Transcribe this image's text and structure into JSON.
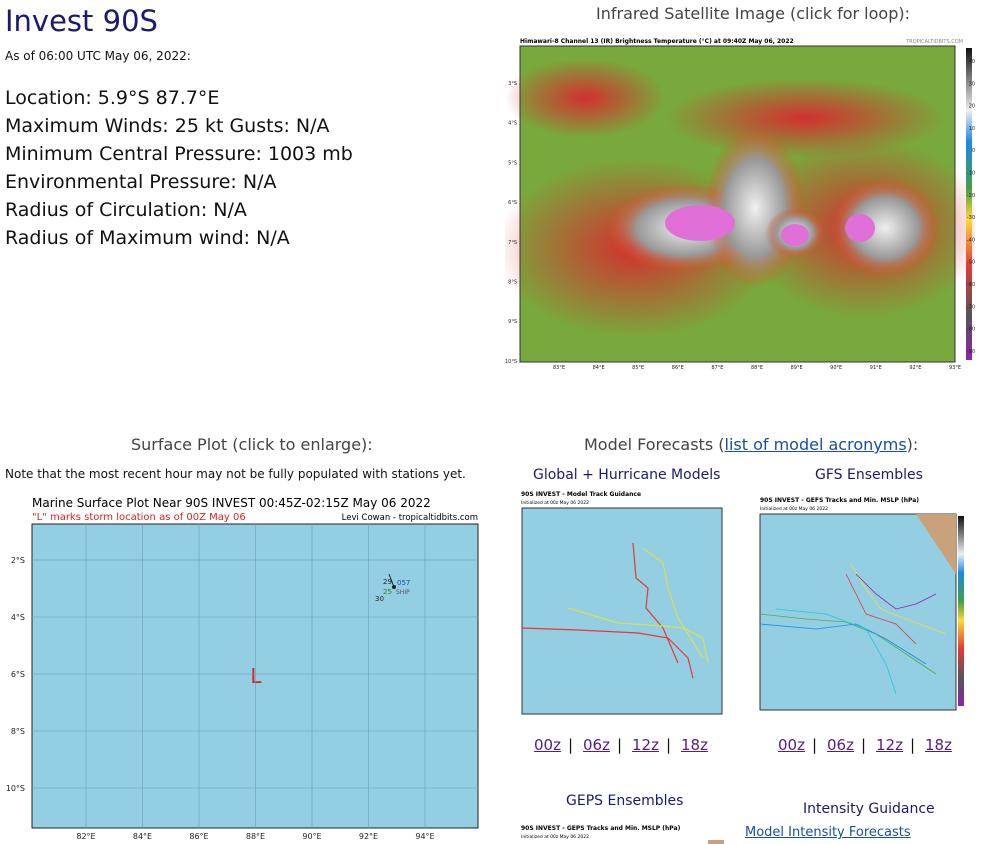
{
  "header": {
    "title": "Invest 90S",
    "as_of": "As of 06:00 UTC May 06, 2022:"
  },
  "details": [
    "Location: 5.9°S 87.7°E",
    "Maximum Winds: 25 kt  Gusts: N/A",
    "Minimum Central Pressure: 1003 mb",
    "Environmental Pressure: N/A",
    "Radius of Circulation: N/A",
    "Radius of Maximum wind: N/A"
  ],
  "satellite": {
    "heading": "Infrared Satellite Image (click for loop):",
    "image_title": "Himawari-8 Channel 13 (IR) Brightness Temperature (°C) at 09:40Z May 06, 2022",
    "credit": "TROPICALTIDBITS.COM",
    "lat_labels": [
      "3°S",
      "4°S",
      "5°S",
      "6°S",
      "7°S",
      "8°S",
      "9°S",
      "10°S"
    ],
    "lon_labels": [
      "83°E",
      "84°E",
      "85°E",
      "86°E",
      "87°E",
      "88°E",
      "89°E",
      "90°E",
      "91°E",
      "92°E",
      "93°E"
    ],
    "colorbar_labels": [
      "40",
      "30",
      "20",
      "10",
      "0",
      "-10",
      "-20",
      "-30",
      "-40",
      "-50",
      "-60",
      "-70",
      "-80",
      "-90"
    ]
  },
  "surface": {
    "heading": "Surface Plot (click to enlarge):",
    "note": "Note that the most recent hour may not be fully populated with stations yet.",
    "plot_title": "Marine Surface Plot Near 90S INVEST 00:45Z-02:15Z May 06 2022",
    "subtitle": "\"L\" marks storm location as of 00Z May 06",
    "credit": "Levi Cowan - tropicaltidbits.com",
    "lat_labels": [
      "2°S",
      "4°S",
      "6°S",
      "8°S",
      "10°S"
    ],
    "lon_labels": [
      "82°E",
      "84°E",
      "86°E",
      "88°E",
      "90°E",
      "92°E",
      "94°E"
    ],
    "storm_marker": "L",
    "station": {
      "temp": "29",
      "pressure": "057",
      "dewpoint": "25",
      "wind": "30",
      "id": "SHIP"
    }
  },
  "models": {
    "heading_prefix": "Model Forecasts (",
    "heading_link": "list of model acronyms",
    "heading_suffix": "):",
    "separator": "|",
    "global": {
      "title": "Global + Hurricane Models",
      "image_title": "90S INVEST - Model Track Guidance",
      "image_sub": "Initialized at 00z May 06 2022",
      "links": [
        "00z",
        "06z",
        "12z",
        "18z"
      ]
    },
    "gfs": {
      "title": "GFS Ensembles",
      "image_title": "90S INVEST - GEFS Tracks and Min. MSLP (hPa)",
      "image_sub": "Initialized at 00z May 06 2022",
      "links": [
        "00z",
        "06z",
        "12z",
        "18z"
      ]
    },
    "geps": {
      "title": "GEPS Ensembles",
      "image_title": "90S INVEST - GEPS Tracks and Min. MSLP (hPa)",
      "image_sub": "Initialized at 00z May 06 2022"
    },
    "intensity": {
      "title": "Intensity Guidance",
      "link": "Model Intensity Forecasts"
    }
  }
}
